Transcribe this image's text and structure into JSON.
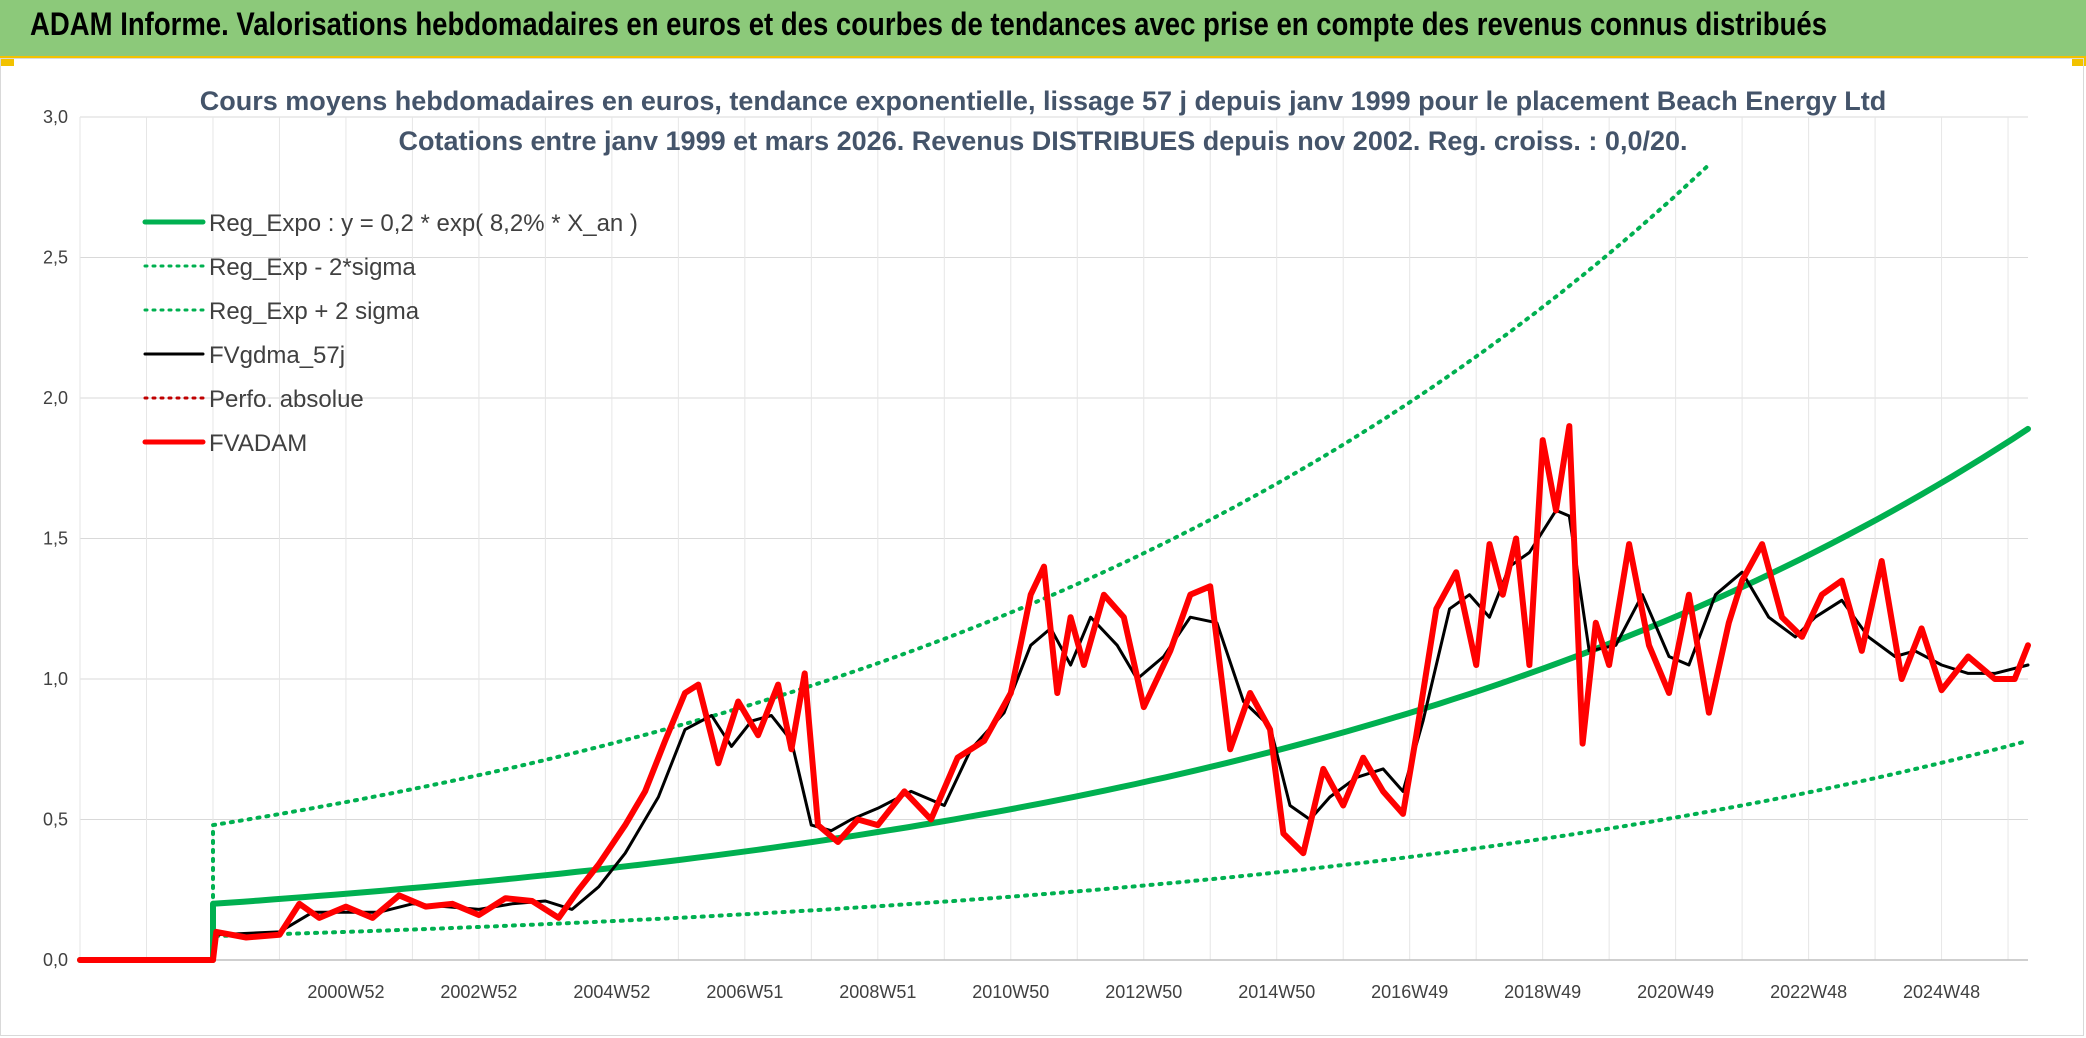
{
  "banner": {
    "title": "ADAM Informe. Valorisations hebdomadaires en euros et des courbes de tendances avec prise en compte des revenus connus distribués"
  },
  "colors": {
    "banner_bg": "#8cc97a",
    "accent_yellow": "#f2c200",
    "reg_green": "#00b050",
    "fv_black": "#000000",
    "adam_red": "#ff0000"
  },
  "chart_data": {
    "type": "line",
    "title": "Cours moyens hebdomadaires en euros, tendance exponentielle, lissage 57 j depuis janv 1999 pour le placement Beach Energy Ltd",
    "subtitle": "Cotations entre janv 1999 et mars 2026. Revenus DISTRIBUES depuis nov 2002. Reg. croiss. : 0,0/20.",
    "xlabel": "",
    "ylabel": "",
    "ylim": [
      0,
      3.0
    ],
    "y_ticks": [
      "0,0",
      "0,5",
      "1,0",
      "1,5",
      "2,0",
      "2,5",
      "3,0"
    ],
    "x_ticks": [
      "2000W52",
      "2002W52",
      "2004W52",
      "2006W51",
      "2008W51",
      "2010W50",
      "2012W50",
      "2014W50",
      "2016W49",
      "2018W49",
      "2020W49",
      "2022W48",
      "2024W48"
    ],
    "x_tick_years": [
      2001.0,
      2003.0,
      2005.0,
      2007.0,
      2009.0,
      2011.0,
      2013.0,
      2015.0,
      2017.0,
      2019.0,
      2021.0,
      2023.0,
      2025.0
    ],
    "xlim": [
      1997.0,
      2026.3
    ],
    "grid": true,
    "legend_position": "top-left",
    "series": [
      {
        "name": "Reg_Expo : y = 0,2 * exp( 8,2% *  X_an )",
        "style": "thick-solid",
        "color": "#00b050",
        "x": [
          1997.0,
          1999.0,
          1999.0,
          2026.3
        ],
        "y": [
          0,
          0,
          0.2,
          1.89
        ],
        "curve": "exponential"
      },
      {
        "name": "Reg_Exp - 2*sigma",
        "style": "dotted",
        "color": "#00b050",
        "x": [
          1999.0,
          1999.0,
          2026.3
        ],
        "y": [
          0,
          0.085,
          0.78
        ],
        "curve": "exponential"
      },
      {
        "name": "Reg_Exp + 2 sigma",
        "style": "dotted",
        "color": "#00b050",
        "x": [
          1999.0,
          1999.0,
          2021.5
        ],
        "y": [
          0,
          0.48,
          2.83
        ],
        "curve": "exponential"
      },
      {
        "name": "FVgdma_57j",
        "style": "solid",
        "color": "#000000",
        "x": [
          1997.0,
          1999.0,
          1999.05,
          2000.0,
          2000.5,
          2001.0,
          2001.5,
          2002.0,
          2002.5,
          2003.0,
          2003.5,
          2004.0,
          2004.4,
          2004.8,
          2005.2,
          2005.7,
          2006.1,
          2006.5,
          2006.8,
          2007.1,
          2007.4,
          2007.7,
          2008.0,
          2008.3,
          2008.6,
          2009.0,
          2009.5,
          2010.0,
          2010.4,
          2010.9,
          2011.3,
          2011.6,
          2011.9,
          2012.2,
          2012.6,
          2012.9,
          2013.3,
          2013.7,
          2014.1,
          2014.5,
          2014.9,
          2015.2,
          2015.5,
          2015.8,
          2016.2,
          2016.6,
          2016.9,
          2017.2,
          2017.6,
          2017.9,
          2018.2,
          2018.5,
          2018.8,
          2019.2,
          2019.4,
          2019.7,
          2020.1,
          2020.5,
          2020.9,
          2021.2,
          2021.6,
          2022.0,
          2022.4,
          2022.8,
          2023.1,
          2023.5,
          2023.9,
          2024.3,
          2024.6,
          2025.0,
          2025.4,
          2025.8,
          2026.3
        ],
        "y": [
          0,
          0,
          0.09,
          0.1,
          0.17,
          0.17,
          0.17,
          0.2,
          0.19,
          0.18,
          0.2,
          0.21,
          0.18,
          0.26,
          0.38,
          0.58,
          0.82,
          0.87,
          0.76,
          0.85,
          0.87,
          0.78,
          0.48,
          0.46,
          0.5,
          0.54,
          0.6,
          0.55,
          0.75,
          0.88,
          1.12,
          1.18,
          1.05,
          1.22,
          1.12,
          1.0,
          1.08,
          1.22,
          1.2,
          0.92,
          0.83,
          0.55,
          0.5,
          0.58,
          0.65,
          0.68,
          0.6,
          0.85,
          1.25,
          1.3,
          1.22,
          1.4,
          1.45,
          1.6,
          1.58,
          1.1,
          1.12,
          1.3,
          1.08,
          1.05,
          1.3,
          1.38,
          1.22,
          1.15,
          1.22,
          1.28,
          1.15,
          1.08,
          1.1,
          1.05,
          1.02,
          1.02,
          1.05
        ]
      },
      {
        "name": "Perfo. absolue",
        "style": "dotted",
        "color": "#c00000",
        "x": [],
        "y": []
      },
      {
        "name": "FVADAM",
        "style": "thick-solid",
        "color": "#ff0000",
        "x": [
          1997.0,
          1999.0,
          1999.05,
          1999.5,
          2000.0,
          2000.3,
          2000.6,
          2001.0,
          2001.4,
          2001.8,
          2002.2,
          2002.6,
          2003.0,
          2003.4,
          2003.8,
          2004.2,
          2004.5,
          2004.8,
          2005.2,
          2005.5,
          2005.8,
          2006.1,
          2006.3,
          2006.6,
          2006.9,
          2007.2,
          2007.5,
          2007.7,
          2007.9,
          2008.1,
          2008.4,
          2008.7,
          2009.0,
          2009.4,
          2009.8,
          2010.2,
          2010.6,
          2011.0,
          2011.3,
          2011.5,
          2011.7,
          2011.9,
          2012.1,
          2012.4,
          2012.7,
          2013.0,
          2013.4,
          2013.7,
          2014.0,
          2014.3,
          2014.6,
          2014.9,
          2015.1,
          2015.4,
          2015.7,
          2016.0,
          2016.3,
          2016.6,
          2016.9,
          2017.1,
          2017.4,
          2017.7,
          2018.0,
          2018.2,
          2018.4,
          2018.6,
          2018.8,
          2019.0,
          2019.2,
          2019.4,
          2019.6,
          2019.8,
          2020.0,
          2020.3,
          2020.6,
          2020.9,
          2021.2,
          2021.5,
          2021.8,
          2022.0,
          2022.3,
          2022.6,
          2022.9,
          2023.2,
          2023.5,
          2023.8,
          2024.1,
          2024.4,
          2024.7,
          2025.0,
          2025.4,
          2025.8,
          2026.1,
          2026.3
        ],
        "y": [
          0,
          0,
          0.1,
          0.08,
          0.09,
          0.2,
          0.15,
          0.19,
          0.15,
          0.23,
          0.19,
          0.2,
          0.16,
          0.22,
          0.21,
          0.15,
          0.25,
          0.34,
          0.48,
          0.6,
          0.78,
          0.95,
          0.98,
          0.7,
          0.92,
          0.8,
          0.98,
          0.75,
          1.02,
          0.48,
          0.42,
          0.5,
          0.48,
          0.6,
          0.5,
          0.72,
          0.78,
          0.95,
          1.3,
          1.4,
          0.95,
          1.22,
          1.05,
          1.3,
          1.22,
          0.9,
          1.1,
          1.3,
          1.33,
          0.75,
          0.95,
          0.82,
          0.45,
          0.38,
          0.68,
          0.55,
          0.72,
          0.6,
          0.52,
          0.8,
          1.25,
          1.38,
          1.05,
          1.48,
          1.3,
          1.5,
          1.05,
          1.85,
          1.6,
          1.9,
          0.77,
          1.2,
          1.05,
          1.48,
          1.12,
          0.95,
          1.3,
          0.88,
          1.2,
          1.35,
          1.48,
          1.22,
          1.15,
          1.3,
          1.35,
          1.1,
          1.42,
          1.0,
          1.18,
          0.96,
          1.08,
          1.0,
          1.0,
          1.12
        ]
      }
    ]
  }
}
